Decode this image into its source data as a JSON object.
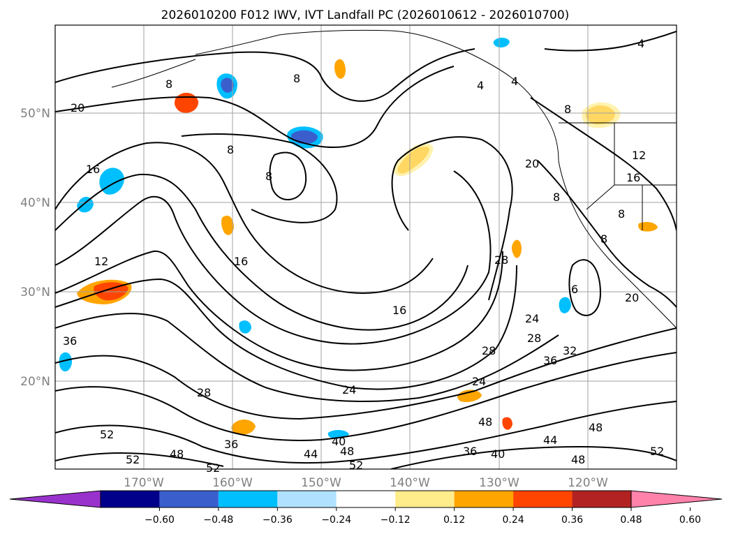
{
  "title": "2026010200 F012 IWV, IVT Landfall PC (2026010612 - 2026010700)",
  "map": {
    "lat_labels": [
      "50°N",
      "40°N",
      "30°N",
      "20°N"
    ],
    "lon_labels": [
      "170°W",
      "160°W",
      "150°W",
      "140°W",
      "130°W",
      "120°W"
    ],
    "grid": true,
    "coastlines": true
  },
  "colorbar": {
    "ticks": [
      "−0.60",
      "−0.48",
      "−0.36",
      "−0.24",
      "−0.12",
      "0.12",
      "0.24",
      "0.36",
      "0.48",
      "0.60"
    ],
    "colors": [
      "#9932cc",
      "#00008b",
      "#3a5fcd",
      "#00bfff",
      "#b0e2ff",
      "#ffffff",
      "#ffec8b",
      "#ffa500",
      "#ff4500",
      "#b22222",
      "#ff82ab"
    ],
    "extend": "both"
  },
  "contour_labels": [
    "4",
    "8",
    "8",
    "8",
    "8",
    "4",
    "4",
    "8",
    "20",
    "16",
    "20",
    "12",
    "16",
    "16",
    "12",
    "8",
    "8",
    "8",
    "16",
    "28",
    "6",
    "20",
    "36",
    "24",
    "28",
    "28",
    "36",
    "32",
    "24",
    "28",
    "24",
    "52",
    "52",
    "48",
    "36",
    "40",
    "44",
    "48",
    "52",
    "36",
    "40",
    "48",
    "44",
    "48",
    "48",
    "52",
    "52"
  ]
}
